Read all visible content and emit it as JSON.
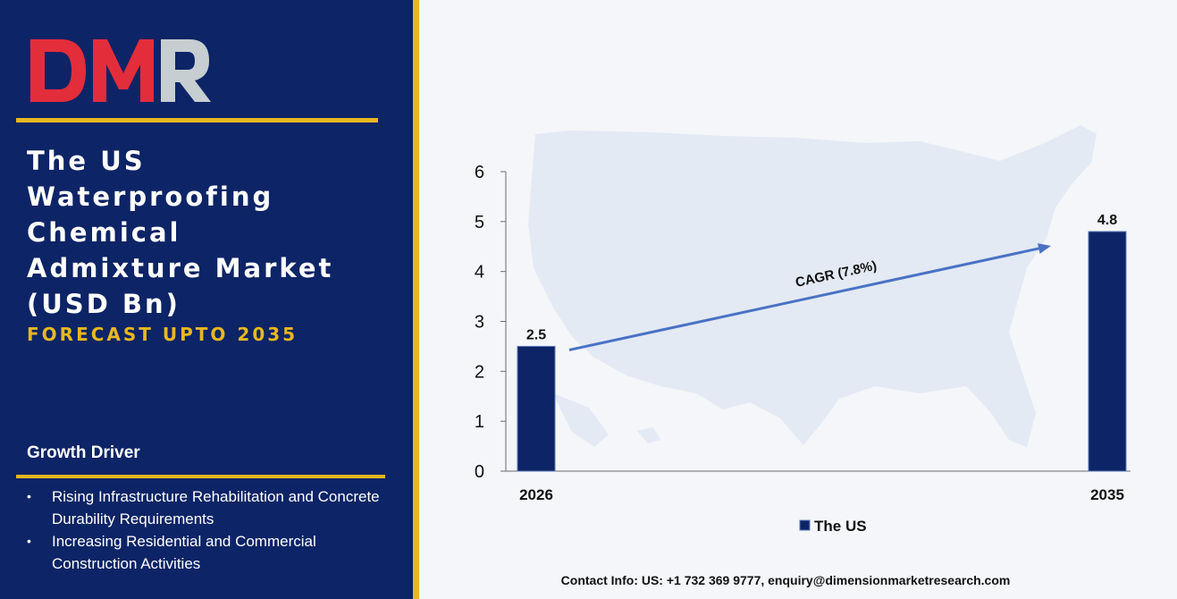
{
  "brand": {
    "logo_text": "DMR"
  },
  "title_lines": [
    "The US",
    "Waterproofing",
    "Chemical",
    "Admixture Market",
    "(USD Bn)"
  ],
  "subtitle": "FORECAST UPTO 2035",
  "growth_driver": {
    "heading": "Growth Driver",
    "items": [
      "Rising Infrastructure Rehabilitation and Concrete Durability Requirements",
      "Increasing Residential and Commercial Construction Activities"
    ]
  },
  "chart_data": {
    "type": "bar",
    "categories": [
      "2026",
      "2035"
    ],
    "series": [
      {
        "name": "The US",
        "values": [
          2.5,
          4.8
        ]
      }
    ],
    "ylim": [
      0,
      6
    ],
    "yticks": [
      0,
      1,
      2,
      3,
      4,
      5,
      6
    ],
    "data_labels": [
      "2.5",
      "4.8"
    ],
    "annotation": "CAGR (7.8%)",
    "grid": false,
    "legend_position": "bottom-center",
    "colors": {
      "bar": "#0d2466",
      "arrow": "#4a72c4",
      "map": "#dde6f1"
    }
  },
  "contact": "Contact Info: US: +1 732 369 9777, enquiry@dimensionmarketresearch.com"
}
